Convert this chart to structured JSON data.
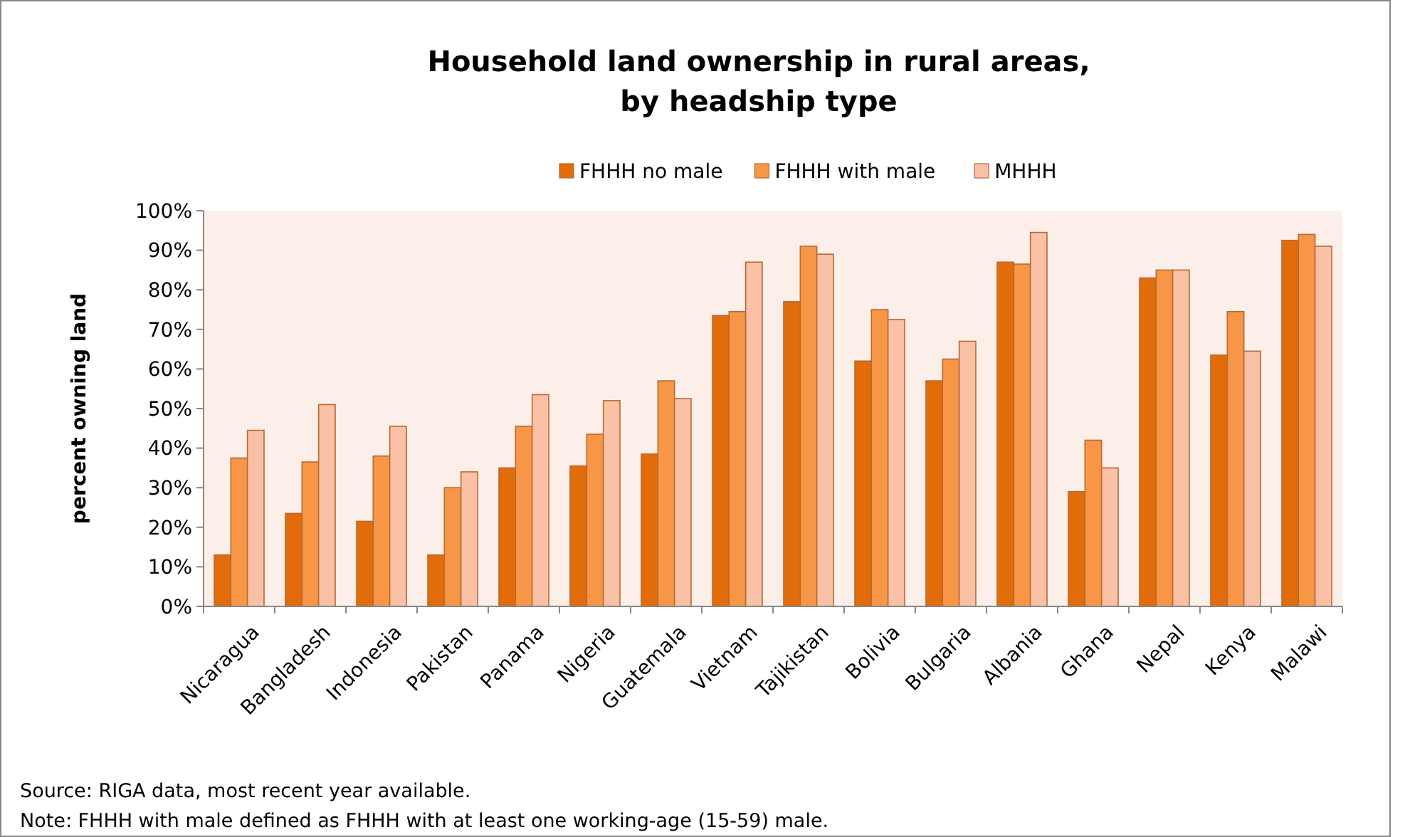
{
  "chart_data": {
    "type": "bar",
    "title": "Household land ownership in rural areas,\nby headship type",
    "ylabel": "percent owning land",
    "categories": [
      "Nicaragua",
      "Bangladesh",
      "Indonesia",
      "Pakistan",
      "Panama",
      "Nigeria",
      "Guatemala",
      "Vietnam",
      "Tajikistan",
      "Bolivia",
      "Bulgaria",
      "Albania",
      "Ghana",
      "Nepal",
      "Kenya",
      "Malawi"
    ],
    "series": [
      {
        "name": "FHHH no male",
        "color": "#e36c0a",
        "values": [
          13,
          23.5,
          21.5,
          13,
          35,
          35.5,
          38.5,
          73.5,
          77,
          62,
          57,
          87,
          29,
          83,
          63.5,
          92.5
        ]
      },
      {
        "name": "FHHH with male",
        "color": "#f79646",
        "values": [
          37.5,
          36.5,
          38,
          30,
          45.5,
          43.5,
          57,
          74.5,
          91,
          75,
          62.5,
          86.5,
          42,
          85,
          74.5,
          94
        ]
      },
      {
        "name": "MHHH",
        "color": "#fac1a6",
        "values": [
          44.5,
          51,
          45.5,
          34,
          53.5,
          52,
          52.5,
          87,
          89,
          72.5,
          67,
          94.5,
          35,
          85,
          64.5,
          91
        ]
      }
    ],
    "ylim": [
      0,
      100
    ],
    "yticks": [
      {
        "value": 0,
        "label": "0%"
      },
      {
        "value": 10,
        "label": "10%"
      },
      {
        "value": 20,
        "label": "20%"
      },
      {
        "value": 30,
        "label": "30%"
      },
      {
        "value": 40,
        "label": "40%"
      },
      {
        "value": 50,
        "label": "50%"
      },
      {
        "value": 60,
        "label": "60%"
      },
      {
        "value": 70,
        "label": "70%"
      },
      {
        "value": 80,
        "label": "80%"
      },
      {
        "value": 90,
        "label": "90%"
      },
      {
        "value": 100,
        "label": "100%"
      }
    ],
    "grid": false,
    "legend": "top",
    "annotations": [
      "Source: RIGA data, most recent year available.",
      "Note: FHHH with male defined as FHHH with at least one working-age (15-59) male."
    ]
  }
}
